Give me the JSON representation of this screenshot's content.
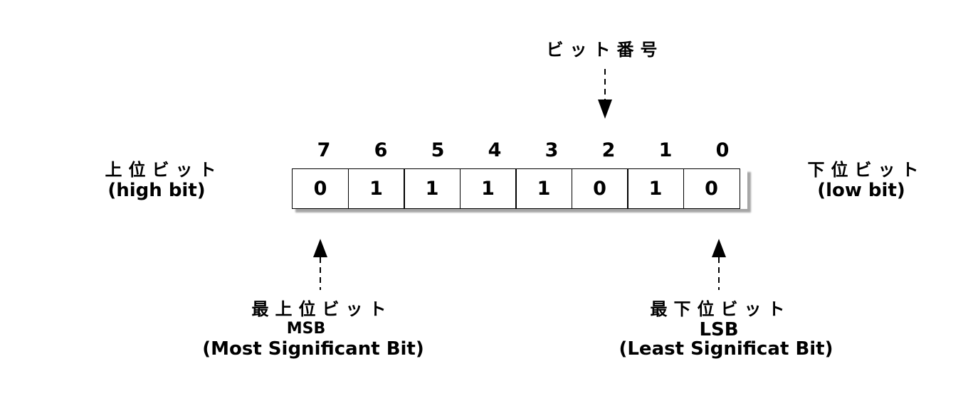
{
  "bit_number_label": "ビット番号",
  "bit_indices": [
    "7",
    "6",
    "5",
    "4",
    "3",
    "2",
    "1",
    "0"
  ],
  "bit_values": [
    "0",
    "1",
    "1",
    "1",
    "1",
    "0",
    "1",
    "0"
  ],
  "high_side": {
    "jp": "上位ビット",
    "en": "(high bit)"
  },
  "low_side": {
    "jp": "下位ビット",
    "en": "(low bit)"
  },
  "msb": {
    "jp": "最上位ビット",
    "abbr": "MSB",
    "full": "(Most Significant Bit)"
  },
  "lsb": {
    "jp": "最下位ビット",
    "abbr": "LSB",
    "full": "(Least Significat Bit)"
  }
}
